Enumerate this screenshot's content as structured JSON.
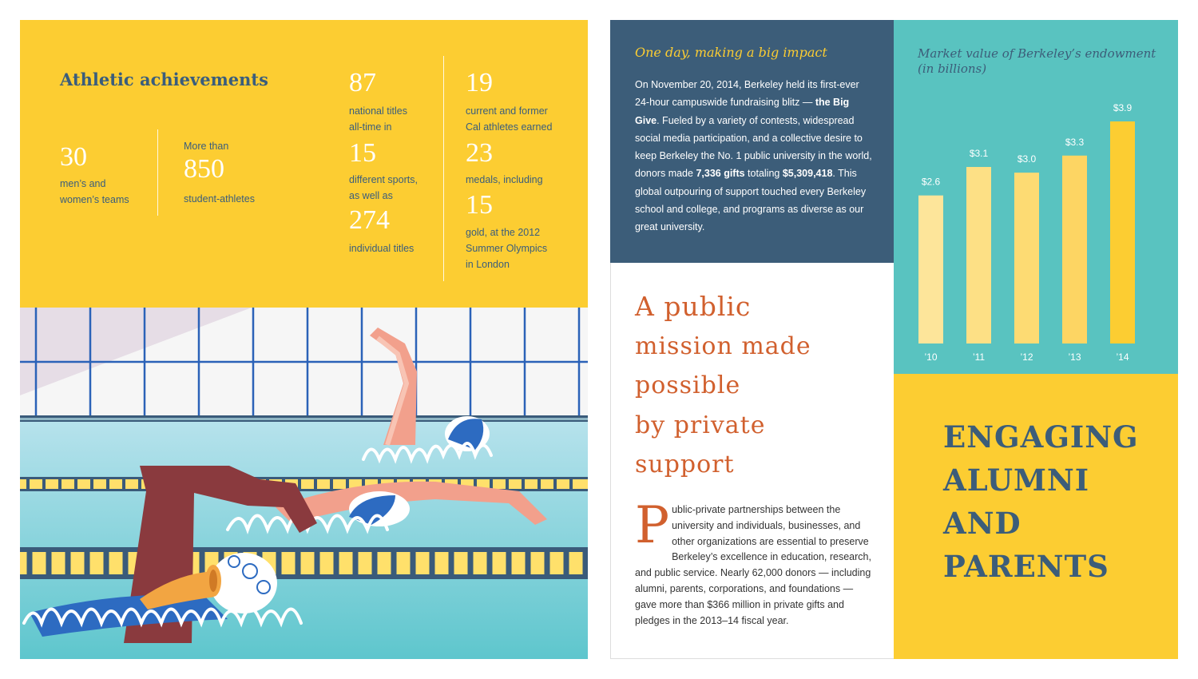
{
  "athletics": {
    "title": "Athletic achievements",
    "teams": {
      "number": "30",
      "label_1": "men’s and",
      "label_2": "women’s teams"
    },
    "athletes": {
      "prefix": "More than",
      "number": "850",
      "label": "student-athletes"
    },
    "national_titles": {
      "number": "87",
      "label_1": "national titles",
      "label_2": "all-time in"
    },
    "sports": {
      "number": "15",
      "label_1": "different sports,",
      "label_2": "as well as"
    },
    "individual": {
      "number": "274",
      "label": "individual titles"
    },
    "olympians": {
      "number": "19",
      "label_1": "current and former",
      "label_2": "Cal athletes earned"
    },
    "medals": {
      "number": "23",
      "label": "medals, including"
    },
    "gold": {
      "number": "15",
      "label_1": "gold, at the 2012",
      "label_2": "Summer Olympics",
      "label_3": "in London"
    }
  },
  "impact": {
    "title": "One day, making a big impact",
    "p1": "On November 20, 2014, Berkeley held its first-ever 24-hour campuswide fundraising blitz — ",
    "b1": "the Big Give",
    "p2": ". Fueled by a variety of contests, widespread social media participation, and a collective desire to keep Berkeley the No. 1 public university in the world, donors made ",
    "b2": "7,336 gifts",
    "p3": " totaling ",
    "b3": "$5,309,418",
    "p4": ". This global outpouring of support touched every Berkeley school and college, and programs as diverse as our great university."
  },
  "mission": {
    "heading_lines": [
      "A public",
      "mission made",
      "possible",
      "by private",
      "support"
    ],
    "dropcap": "P",
    "body": "ublic-private partnerships between the university and individuals, businesses, and other organizations are essential to preserve Berkeley’s excellence in education, research, and public service. Nearly 62,000 donors — including alumni, parents, corporations, and foundations — gave more than $366 million in private gifts and pledges in the 2013–14 fiscal year."
  },
  "chart_data": {
    "type": "bar",
    "title": "Market value of Berkeley’s endowment (in billions)",
    "categories": [
      "’10",
      "’11",
      "’12",
      "’13",
      "’14"
    ],
    "values": [
      2.6,
      3.1,
      3.0,
      3.3,
      3.9
    ],
    "value_labels": [
      "$2.6",
      "$3.1",
      "$3.0",
      "$3.3",
      "$3.9"
    ],
    "xlabel": "",
    "ylabel": "",
    "ylim": [
      0,
      3.9
    ],
    "grid": false,
    "colors": [
      "#fde59a",
      "#fde085",
      "#fddb73",
      "#fdd563",
      "#fccd32"
    ]
  },
  "engaging": {
    "lines": [
      "ENGAGING",
      "ALUMNI",
      "AND",
      "PARENTS"
    ]
  },
  "colors": {
    "yellow": "#fccd32",
    "navy": "#3c5d79",
    "teal": "#59c3c0",
    "orange": "#d1602e",
    "pool": "#a5dbe7"
  }
}
